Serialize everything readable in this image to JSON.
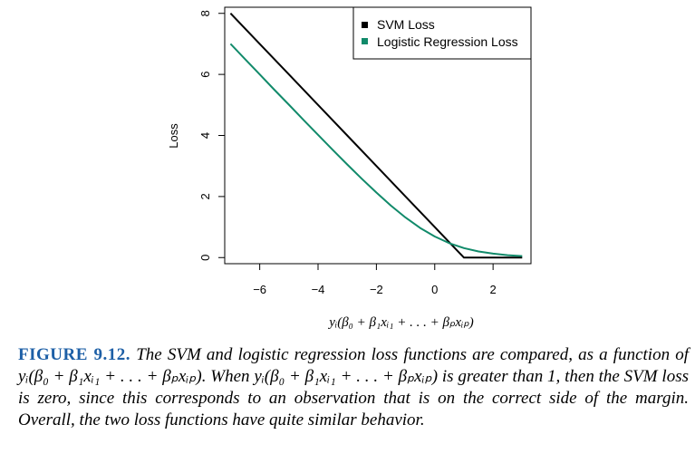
{
  "chart_data": {
    "type": "line",
    "xlabel": "yᵢ(β₀ + β₁xᵢ₁ + . . . + βₚxᵢₚ)",
    "ylabel": "Loss",
    "xlim": [
      -7.2,
      3.3
    ],
    "ylim": [
      -0.2,
      8.2
    ],
    "xticks": [
      -6,
      -4,
      -2,
      0,
      2
    ],
    "xtick_labels": [
      "−6",
      "−4",
      "−2",
      "0",
      "2"
    ],
    "yticks": [
      0,
      2,
      4,
      6,
      8
    ],
    "ytick_labels": [
      "0",
      "2",
      "4",
      "6",
      "8"
    ],
    "grid": false,
    "legend_position": "top-right",
    "series": [
      {
        "name": "SVM Loss",
        "color": "#000000",
        "x": [
          -7,
          -6,
          -5,
          -4,
          -3,
          -2,
          -1,
          0,
          1,
          2,
          3
        ],
        "y": [
          8,
          7,
          6,
          5,
          4,
          3,
          2,
          1,
          0,
          0,
          0
        ]
      },
      {
        "name": "Logistic Regression Loss",
        "color": "#118a6a",
        "x": [
          -7,
          -6.5,
          -6,
          -5.5,
          -5,
          -4.5,
          -4,
          -3.5,
          -3,
          -2.5,
          -2,
          -1.5,
          -1,
          -0.5,
          0,
          0.5,
          1,
          1.5,
          2,
          2.5,
          3
        ],
        "y": [
          7.0,
          6.5,
          6.0,
          5.5,
          5.01,
          4.51,
          4.02,
          3.53,
          3.05,
          2.58,
          2.13,
          1.7,
          1.31,
          0.97,
          0.69,
          0.47,
          0.31,
          0.2,
          0.13,
          0.08,
          0.05
        ]
      }
    ]
  },
  "caption": {
    "label": "FIGURE 9.12.",
    "text": "The SVM and logistic regression loss functions are compared, as a function of yᵢ(β₀ + β₁xᵢ₁ + . . . + βₚxᵢₚ). When yᵢ(β₀ + β₁xᵢ₁ + . . . + βₚxᵢₚ) is greater than 1, then the SVM loss is zero, since this corresponds to an observation that is on the correct side of the margin. Overall, the two loss functions have quite similar behavior."
  }
}
